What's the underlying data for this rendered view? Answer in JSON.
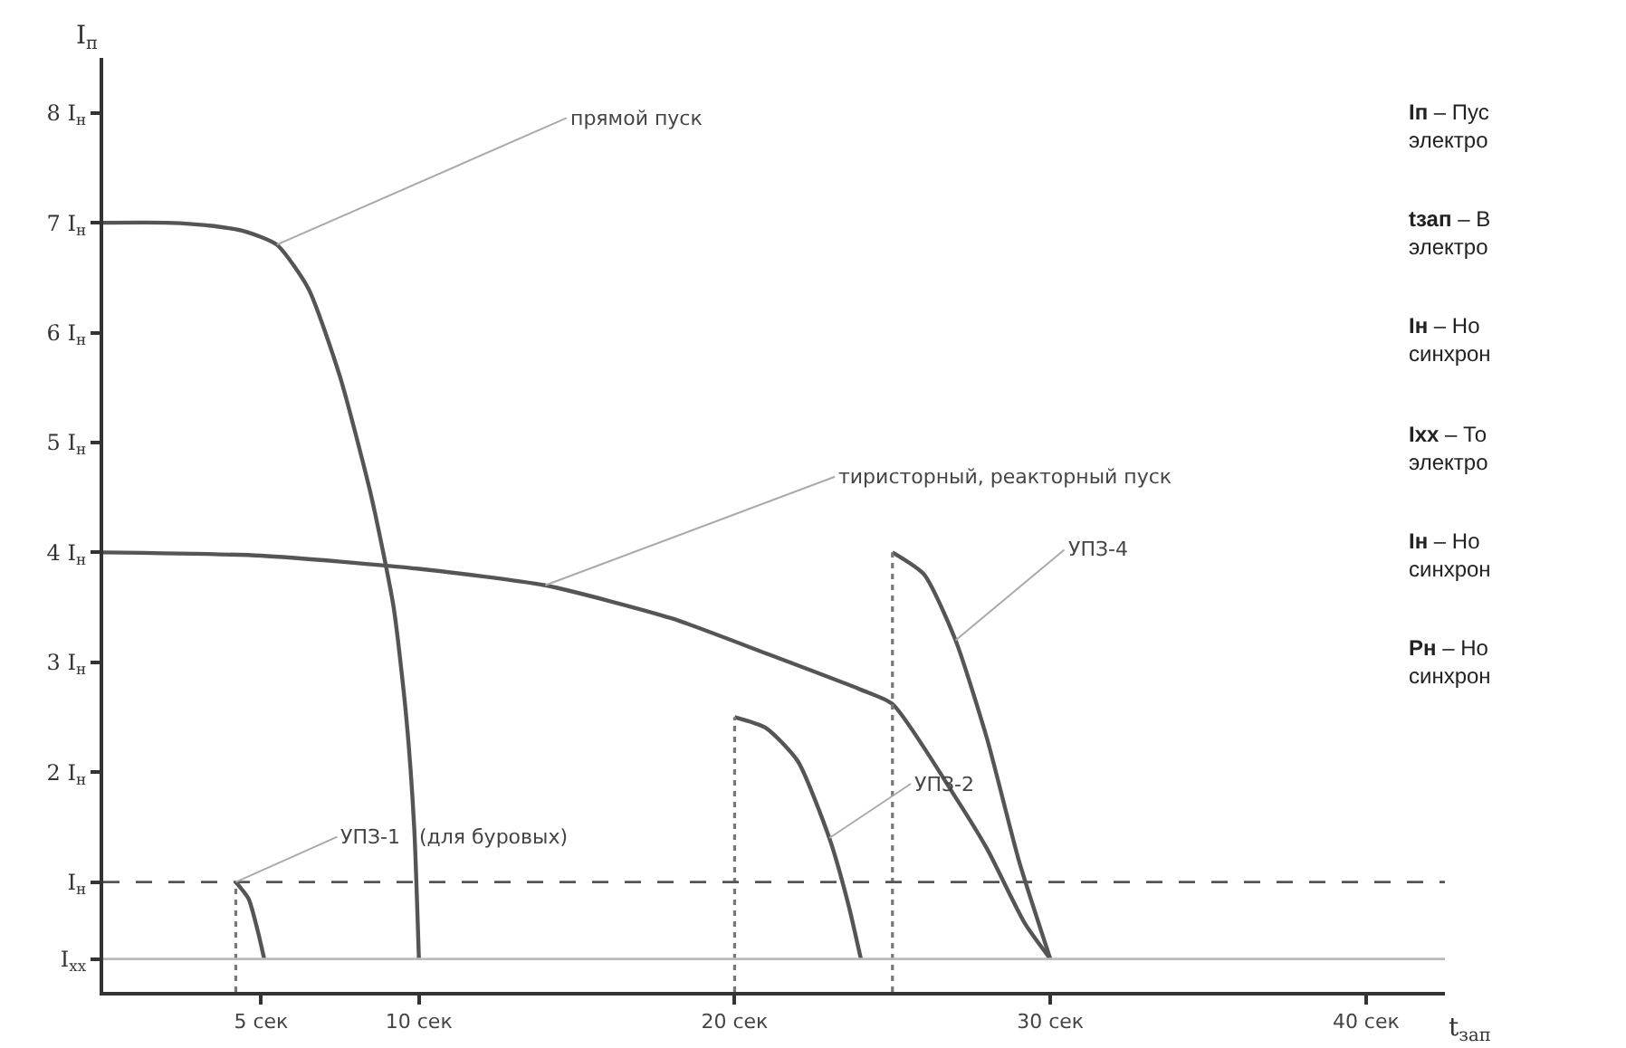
{
  "chart_data": {
    "type": "line",
    "xlabel": "t$_{зап}$",
    "ylabel": "I$_{п}$",
    "xlim": [
      0,
      42.5
    ],
    "ylim": [
      0,
      8.5
    ],
    "xticks": [
      {
        "value": 5,
        "label": "5 сек"
      },
      {
        "value": 10,
        "label": "10 сек"
      },
      {
        "value": 20,
        "label": "20 сек"
      },
      {
        "value": 30,
        "label": "30 сек"
      },
      {
        "value": 40,
        "label": "40 сек"
      }
    ],
    "yticks": [
      {
        "value": 0.3,
        "label": "I$_{хх}$"
      },
      {
        "value": 1,
        "label": "I$_{н}$"
      },
      {
        "value": 2,
        "label": "2 I$_{н}$"
      },
      {
        "value": 3,
        "label": "3 I$_{н}$"
      },
      {
        "value": 4,
        "label": "4 I$_{н}$"
      },
      {
        "value": 5,
        "label": "5 I$_{н}$"
      },
      {
        "value": 6,
        "label": "6 I$_{н}$"
      },
      {
        "value": 7,
        "label": "7 I$_{н}$"
      },
      {
        "value": 8,
        "label": "8 I$_{н}$"
      }
    ],
    "grid": false,
    "legend": false,
    "marker": "none",
    "line_style": "solid",
    "series": [
      {
        "name": "прямой пуск",
        "color": "#555555",
        "x": [
          0,
          2,
          3.5,
          4.5,
          5.5,
          6.5,
          7.5,
          8.5,
          9.2,
          9.6,
          9.85,
          10
        ],
        "values": [
          7,
          7,
          6.97,
          6.92,
          6.8,
          6.4,
          5.6,
          4.5,
          3.5,
          2.5,
          1.5,
          0.3
        ]
      },
      {
        "name": "тиристорный, реакторный пуск",
        "color": "#555555",
        "x": [
          0,
          5,
          10,
          14,
          18,
          21,
          24,
          25,
          27,
          28,
          29.2,
          30
        ],
        "values": [
          4,
          3.97,
          3.85,
          3.7,
          3.4,
          3.08,
          2.75,
          2.62,
          1.77,
          1.3,
          0.62,
          0.3
        ]
      },
      {
        "name": "УПЗ-1   (для буровых)",
        "color": "#555555",
        "x": [
          4.2,
          4.6,
          4.9,
          5.1
        ],
        "values": [
          1,
          0.85,
          0.55,
          0.3
        ]
      },
      {
        "name": "УПЗ-2",
        "color": "#555555",
        "x": [
          20,
          21,
          22,
          23,
          23.6,
          24
        ],
        "values": [
          2.5,
          2.4,
          2.1,
          1.4,
          0.8,
          0.3
        ]
      },
      {
        "name": "УПЗ-4",
        "color": "#555555",
        "x": [
          25,
          26,
          27,
          28,
          29,
          30
        ],
        "values": [
          4,
          3.8,
          3.2,
          2.3,
          1.2,
          0.3
        ]
      },
      {
        "color": "#777777",
        "line_style": "dotted",
        "x": [
          4.2,
          4.2
        ],
        "values": [
          0,
          1
        ]
      },
      {
        "color": "#777777",
        "line_style": "dotted",
        "x": [
          20,
          20
        ],
        "values": [
          0,
          2.5
        ]
      },
      {
        "color": "#777777",
        "line_style": "dotted",
        "x": [
          25,
          25
        ],
        "values": [
          0,
          4
        ]
      }
    ],
    "ref_lines": [
      {
        "axis": "y",
        "value": 1,
        "color": "#555555",
        "line_style": "dashed"
      },
      {
        "axis": "y",
        "value": 0.3,
        "color": "#bbbbbb",
        "line_style": "solid"
      }
    ],
    "annotations": [
      "Iп – Пус\nэлектро",
      "tзап – В\nэлектро",
      "Iн – Но\nсинхрон",
      "Ixx – То\nэлектро",
      "Iн – Но\nсинхрон",
      "Pн – Но\nсинхрон"
    ]
  }
}
